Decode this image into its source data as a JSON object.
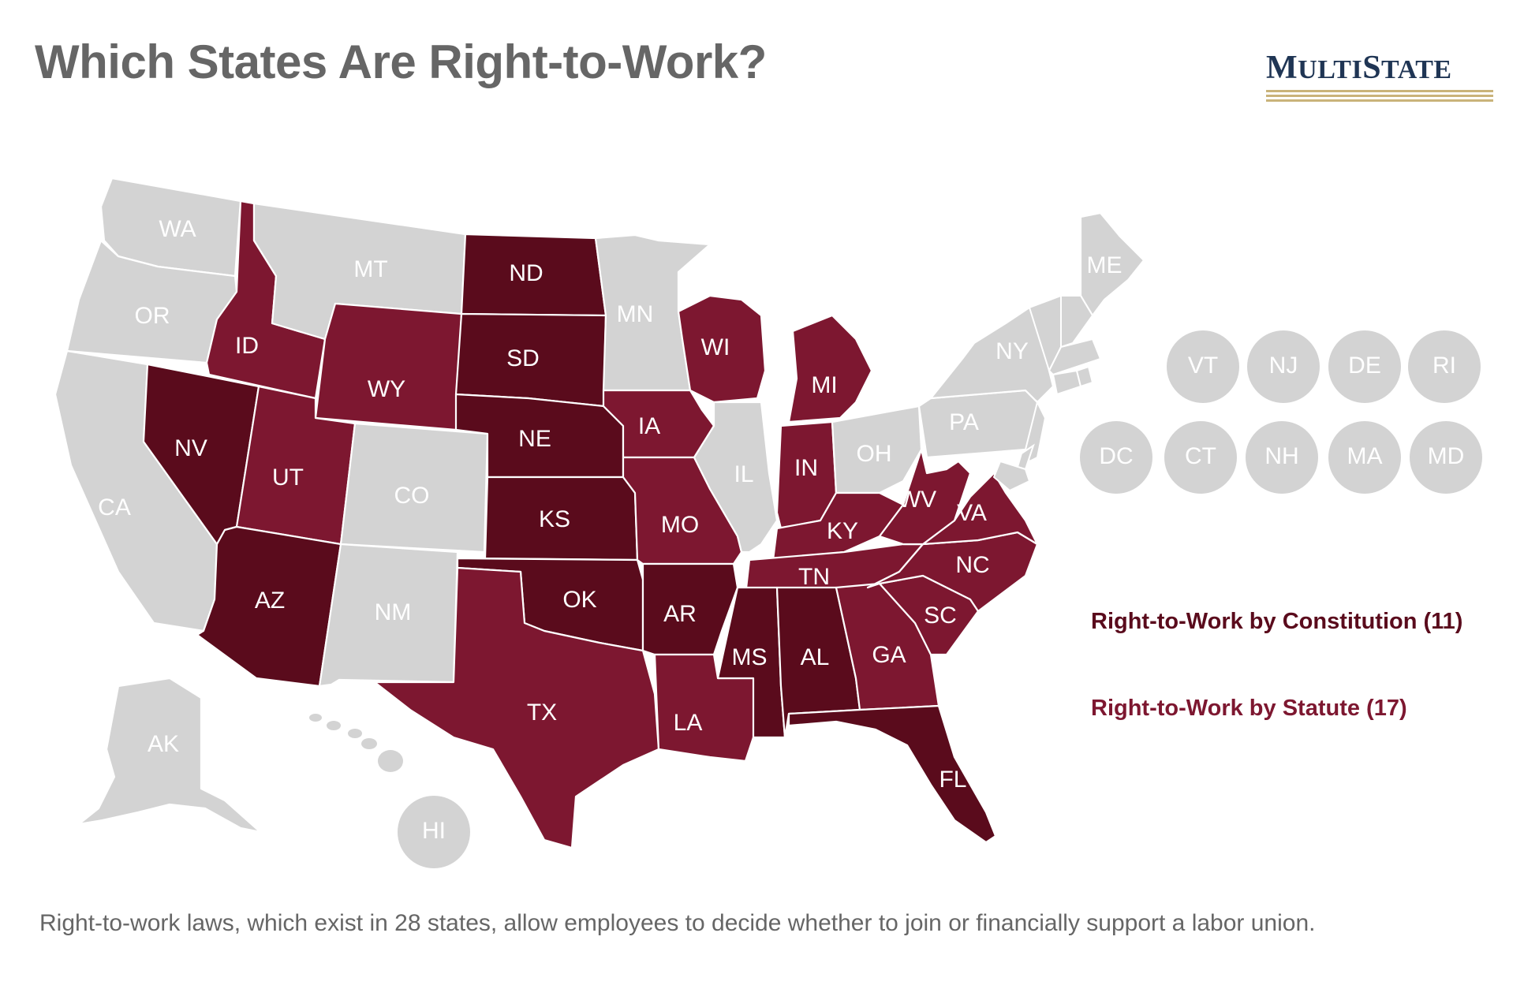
{
  "title": "Which States Are Right-to-Work?",
  "logo": {
    "first_letter": "M",
    "rest1": "ULTI",
    "second_letter": "S",
    "rest2": "TATE"
  },
  "legend": {
    "constitution": "Right-to-Work by Constitution (11)",
    "statute": "Right-to-Work by Statute (17)"
  },
  "footer": "Right-to-work laws, which exist in 28 states, allow employees to decide whether to join or financially support a labor union.",
  "colors": {
    "constitution": "#5a0b1c",
    "statute": "#7d1730",
    "none": "#d3d3d3",
    "label": "#ffffff",
    "title": "#666666"
  },
  "chart_data": {
    "type": "choropleth",
    "categories": {
      "constitution": [
        "ND",
        "SD",
        "NE",
        "KS",
        "OK",
        "AR",
        "NV",
        "AZ",
        "MS",
        "AL",
        "FL"
      ],
      "statute": [
        "ID",
        "UT",
        "WY",
        "TX",
        "IA",
        "MO",
        "LA",
        "WI",
        "MI",
        "IN",
        "KY",
        "TN",
        "WV",
        "VA",
        "NC",
        "SC",
        "GA"
      ]
    },
    "states": [
      {
        "abbr": "WA",
        "status": "none"
      },
      {
        "abbr": "OR",
        "status": "none"
      },
      {
        "abbr": "CA",
        "status": "none"
      },
      {
        "abbr": "ID",
        "status": "statute"
      },
      {
        "abbr": "NV",
        "status": "constitution"
      },
      {
        "abbr": "MT",
        "status": "none"
      },
      {
        "abbr": "WY",
        "status": "statute"
      },
      {
        "abbr": "UT",
        "status": "statute"
      },
      {
        "abbr": "AZ",
        "status": "constitution"
      },
      {
        "abbr": "CO",
        "status": "none"
      },
      {
        "abbr": "NM",
        "status": "none"
      },
      {
        "abbr": "ND",
        "status": "constitution"
      },
      {
        "abbr": "SD",
        "status": "constitution"
      },
      {
        "abbr": "NE",
        "status": "constitution"
      },
      {
        "abbr": "KS",
        "status": "constitution"
      },
      {
        "abbr": "OK",
        "status": "constitution"
      },
      {
        "abbr": "TX",
        "status": "statute"
      },
      {
        "abbr": "MN",
        "status": "none"
      },
      {
        "abbr": "IA",
        "status": "statute"
      },
      {
        "abbr": "MO",
        "status": "statute"
      },
      {
        "abbr": "AR",
        "status": "constitution"
      },
      {
        "abbr": "LA",
        "status": "statute"
      },
      {
        "abbr": "WI",
        "status": "statute"
      },
      {
        "abbr": "IL",
        "status": "none"
      },
      {
        "abbr": "MI",
        "status": "statute"
      },
      {
        "abbr": "IN",
        "status": "statute"
      },
      {
        "abbr": "OH",
        "status": "none"
      },
      {
        "abbr": "KY",
        "status": "statute"
      },
      {
        "abbr": "TN",
        "status": "statute"
      },
      {
        "abbr": "MS",
        "status": "constitution"
      },
      {
        "abbr": "AL",
        "status": "constitution"
      },
      {
        "abbr": "GA",
        "status": "statute"
      },
      {
        "abbr": "FL",
        "status": "constitution"
      },
      {
        "abbr": "SC",
        "status": "statute"
      },
      {
        "abbr": "NC",
        "status": "statute"
      },
      {
        "abbr": "VA",
        "status": "statute"
      },
      {
        "abbr": "WV",
        "status": "statute"
      },
      {
        "abbr": "PA",
        "status": "none"
      },
      {
        "abbr": "NY",
        "status": "none"
      },
      {
        "abbr": "ME",
        "status": "none"
      },
      {
        "abbr": "AK",
        "status": "none"
      },
      {
        "abbr": "HI",
        "status": "none"
      }
    ],
    "small_states": [
      {
        "abbr": "VT",
        "status": "none"
      },
      {
        "abbr": "NJ",
        "status": "none"
      },
      {
        "abbr": "DE",
        "status": "none"
      },
      {
        "abbr": "RI",
        "status": "none"
      },
      {
        "abbr": "DC",
        "status": "none"
      },
      {
        "abbr": "CT",
        "status": "none"
      },
      {
        "abbr": "NH",
        "status": "none"
      },
      {
        "abbr": "MA",
        "status": "none"
      },
      {
        "abbr": "MD",
        "status": "none"
      }
    ]
  }
}
